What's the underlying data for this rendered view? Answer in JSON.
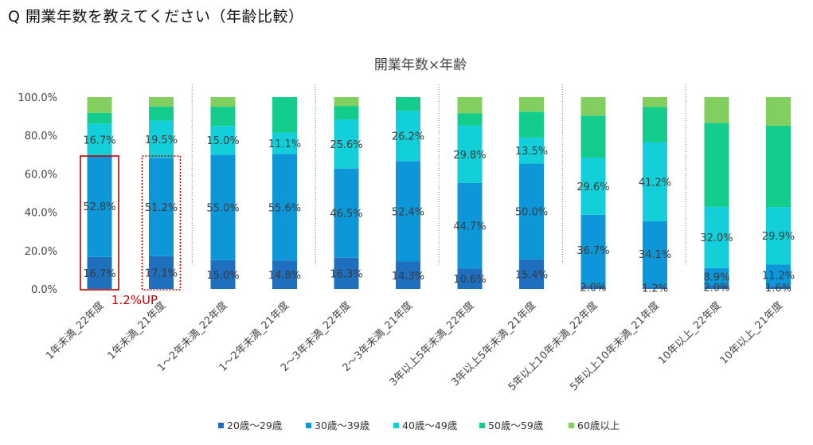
{
  "question": "Q 開業年数を教えてください（年齢比較）",
  "chart_data": {
    "type": "bar",
    "stacked": true,
    "percent": true,
    "title": "開業年数×年齢",
    "ylim": [
      0,
      100
    ],
    "yticks": [
      "0.0%",
      "20.0%",
      "40.0%",
      "60.0%",
      "80.0%",
      "100.0%"
    ],
    "categories": [
      "1年未満_22年度",
      "1年未満_21年度",
      "1～2年未満_22年度",
      "1～2年未満_21年度",
      "2～3年未満_22年度",
      "2～3年未満_21年度",
      "3年以上5年未満_22年度",
      "3年以上5年未満_21年度",
      "5年以上10年未満_22年度",
      "5年以上10年未満_21年度",
      "10年以上_22年度",
      "10年以上_21年度"
    ],
    "series": [
      {
        "name": "20歳～29歳",
        "color": "#1f6fbf",
        "values": [
          16.7,
          17.1,
          15.0,
          14.8,
          16.3,
          14.3,
          10.6,
          15.4,
          2.0,
          1.2,
          2.0,
          1.6
        ],
        "labels": [
          "16.7%",
          "17.1%",
          "15.0%",
          "14.8%",
          "16.3%",
          "14.3%",
          "10.6%",
          "15.4%",
          "2.0%",
          "1.2%",
          "2.0%",
          "1.6%"
        ]
      },
      {
        "name": "30歳～39歳",
        "color": "#0e97d8",
        "values": [
          52.8,
          51.2,
          55.0,
          55.6,
          46.5,
          52.4,
          44.7,
          50.0,
          36.7,
          34.1,
          8.9,
          11.2
        ],
        "labels": [
          "52.8%",
          "51.2%",
          "55.0%",
          "55.6%",
          "46.5%",
          "52.4%",
          "44.7%",
          "50.0%",
          "36.7%",
          "34.1%",
          "8.9%",
          "11.2%"
        ]
      },
      {
        "name": "40歳～49歳",
        "color": "#12cfd9",
        "values": [
          16.7,
          19.5,
          15.0,
          11.1,
          25.6,
          26.2,
          29.8,
          13.5,
          29.6,
          41.2,
          32.0,
          29.9
        ],
        "labels": [
          "16.7%",
          "19.5%",
          "15.0%",
          "11.1%",
          "25.6%",
          "26.2%",
          "29.8%",
          "13.5%",
          "29.6%",
          "41.2%",
          "32.0%",
          "29.9%"
        ]
      },
      {
        "name": "50歳～59歳",
        "color": "#14cc8c",
        "values": [
          5.6,
          7.3,
          10.0,
          18.5,
          7.0,
          7.1,
          6.4,
          13.5,
          22.0,
          18.3,
          43.6,
          42.4
        ],
        "labels": []
      },
      {
        "name": "60歳以上",
        "color": "#82cf5f",
        "values": [
          8.2,
          4.9,
          5.0,
          0.0,
          4.6,
          0.0,
          8.5,
          7.6,
          9.7,
          5.2,
          13.5,
          14.9
        ],
        "labels": []
      }
    ],
    "annotation": "1.2%UP"
  }
}
